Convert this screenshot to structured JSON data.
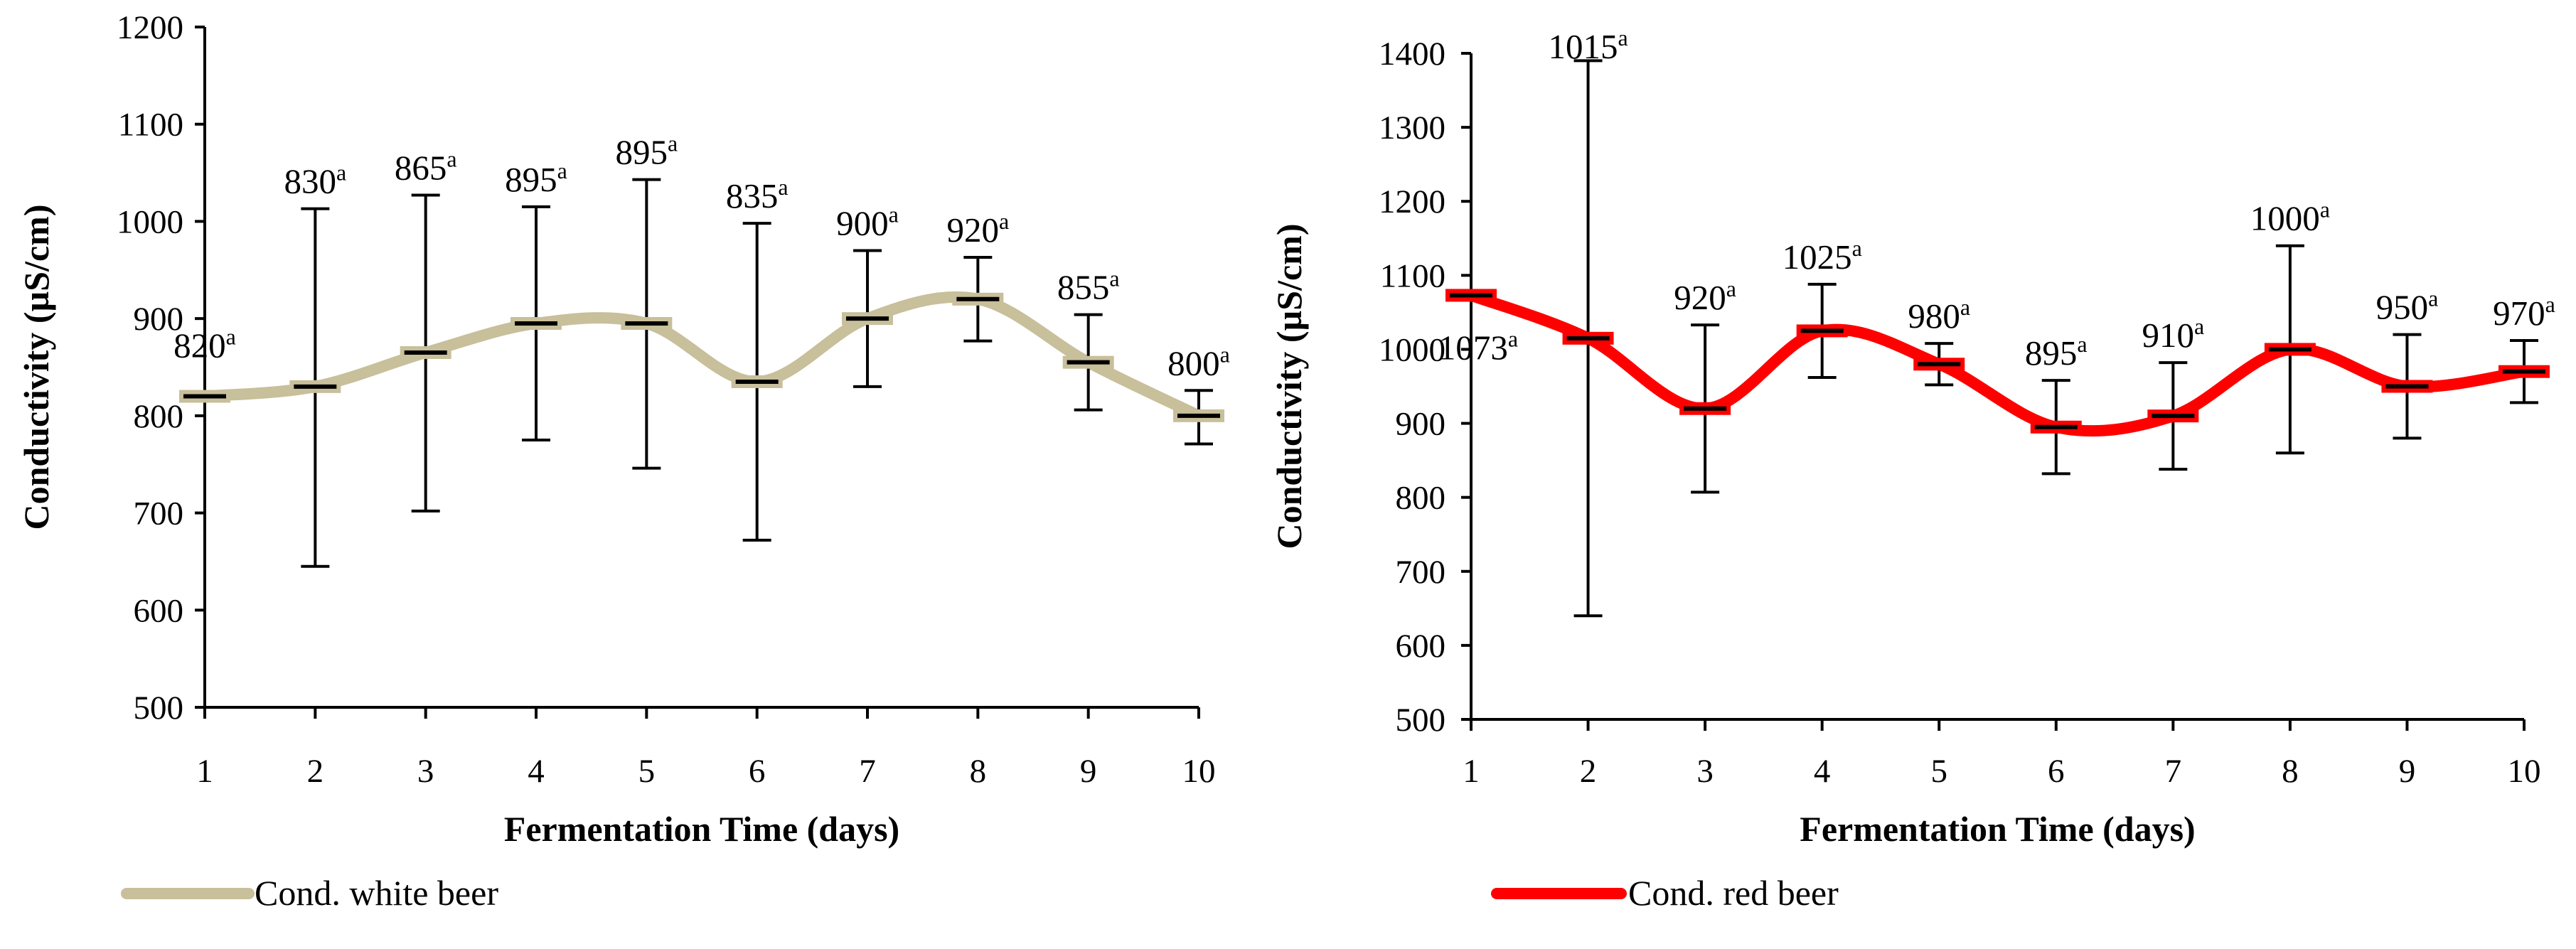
{
  "chart_data": [
    {
      "type": "line",
      "categories": [
        "1",
        "2",
        "3",
        "4",
        "5",
        "6",
        "7",
        "8",
        "9",
        "10"
      ],
      "series": [
        {
          "name": "Cond. white beer",
          "values": [
            820,
            830,
            865,
            895,
            895,
            835,
            900,
            920,
            855,
            800
          ],
          "error_low": [
            820,
            645,
            702,
            775,
            746,
            672,
            830,
            877,
            806,
            771
          ],
          "error_high": [
            820,
            1013,
            1027,
            1015,
            1043,
            998,
            970,
            963,
            904,
            826
          ],
          "labels": [
            "820",
            "830",
            "865",
            "895",
            "895",
            "835",
            "900",
            "920",
            "855",
            "800"
          ],
          "superscripts": [
            "a",
            "a",
            "a",
            "a",
            "a",
            "a",
            "a",
            "a",
            "a",
            "a"
          ],
          "color": "#c8bf9b"
        }
      ],
      "title": "",
      "xlabel": "Fermentation Time (days)",
      "ylabel": "Conductivity (µS/cm)",
      "ylim": [
        500,
        1200
      ],
      "yticks": [
        "500",
        "600",
        "700",
        "800",
        "900",
        "1000",
        "1100",
        "1200"
      ],
      "grid": false,
      "legend": "bottom-left"
    },
    {
      "type": "line",
      "categories": [
        "1",
        "2",
        "3",
        "4",
        "5",
        "6",
        "7",
        "8",
        "9",
        "10"
      ],
      "series": [
        {
          "name": "Cond. red beer",
          "values": [
            1073,
            1015,
            920,
            1025,
            980,
            895,
            910,
            1000,
            950,
            970
          ],
          "error_low": [
            1073,
            640,
            807,
            962,
            952,
            832,
            838,
            860,
            880,
            928
          ],
          "error_high": [
            1073,
            1390,
            1033,
            1088,
            1008,
            958,
            982,
            1140,
            1020,
            1012
          ],
          "labels": [
            "1073",
            "1015",
            "920",
            "1025",
            "980",
            "895",
            "910",
            "1000",
            "950",
            "970"
          ],
          "superscripts": [
            "a",
            "a",
            "a",
            "a",
            "a",
            "a",
            "a",
            "a",
            "a",
            "a"
          ],
          "color": "#ff0000"
        }
      ],
      "title": "",
      "xlabel": "Fermentation Time (days)",
      "ylabel": "Conductivity (µS/cm)",
      "ylim": [
        500,
        1400
      ],
      "yticks": [
        "500",
        "600",
        "700",
        "800",
        "900",
        "1000",
        "1100",
        "1200",
        "1300",
        "1400"
      ],
      "grid": false,
      "legend": "bottom-center"
    }
  ]
}
